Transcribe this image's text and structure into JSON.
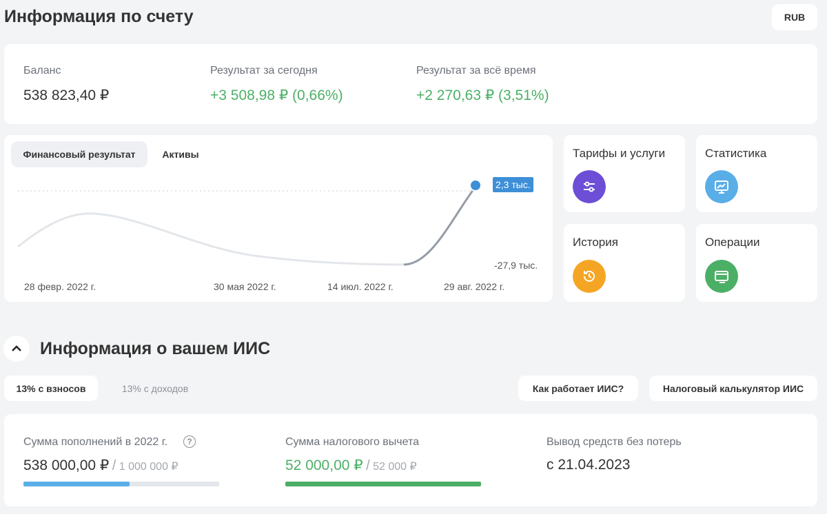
{
  "header": {
    "title": "Информация по счету",
    "currency": "RUB"
  },
  "summary": [
    {
      "label": "Баланс",
      "value": "538 823,40 ₽"
    },
    {
      "label": "Результат за сегодня",
      "value": "+3 508,98 ₽ (0,66%)"
    },
    {
      "label": "Результат за всё время",
      "value": "+2 270,63 ₽ (3,51%)"
    }
  ],
  "chart": {
    "tabs": [
      "Финансовый результат",
      "Активы"
    ],
    "max_label": "2,3 тыс.",
    "min_label": "-27,9 тыс.",
    "dates": [
      "28 февр. 2022 г.",
      "30 мая 2022 г.",
      "14 июл. 2022 г.",
      "29 авг. 2022 г."
    ]
  },
  "tiles": [
    "Тарифы и услуги",
    "Статистика",
    "История",
    "Операции"
  ],
  "iis": {
    "title": "Информация о вашем ИИС",
    "tabs": [
      "13% с взносов",
      "13% с доходов"
    ],
    "buttons": [
      "Как работает ИИС?",
      "Налоговый калькулятор ИИС"
    ],
    "items": [
      {
        "label": "Сумма пополнений в 2022 г.",
        "hint": "?",
        "value": "538 000,00 ₽",
        "separator": "/",
        "limit": "1 000 000 ₽"
      },
      {
        "label": "Сумма налогового вычета",
        "value": "52 000,00 ₽",
        "separator": "/",
        "limit": "52 000 ₽"
      },
      {
        "label": "Вывод средств без потерь",
        "value": "с 21.04.2023"
      }
    ]
  }
}
